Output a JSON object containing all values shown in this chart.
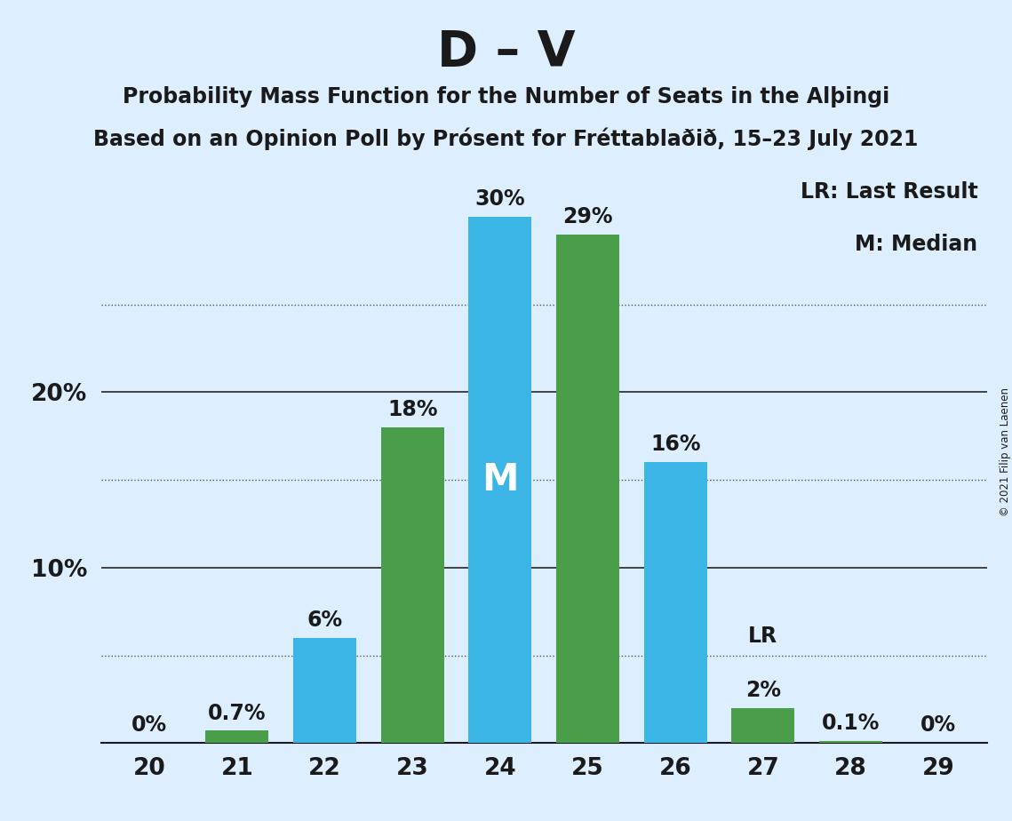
{
  "title": "D – V",
  "subtitle1": "Probability Mass Function for the Number of Seats in the Alþingi",
  "subtitle2": "Based on an Opinion Poll by Prósent for Fréttablaðið, 15–23 July 2021",
  "copyright": "© 2021 Filip van Laenen",
  "seats": [
    20,
    21,
    22,
    23,
    24,
    25,
    26,
    27,
    28,
    29
  ],
  "pmf_values": [
    0.0,
    0.7,
    6.0,
    18.0,
    30.0,
    29.0,
    16.0,
    2.0,
    0.1,
    0.0
  ],
  "bar_colors": [
    "#3ab5e6",
    "#4a9e4a",
    "#3ab5e6",
    "#4a9e4a",
    "#3ab5e6",
    "#4a9e4a",
    "#3ab5e6",
    "#4a9e4a",
    "#4a9e4a",
    "#4a9e4a"
  ],
  "median_seat": 24,
  "lr_seat": 27,
  "background_color": "#ddeeff",
  "bar_color_blue": "#3ab5e6",
  "bar_color_green": "#4a9e4a",
  "label_color": "#1a1a1a",
  "solid_grid_color": "#333333",
  "dot_grid_color": "#555555",
  "ymax": 33,
  "solid_lines": [
    10,
    20
  ],
  "dotted_lines": [
    5,
    15,
    25
  ],
  "ytick_labels": [
    10,
    20
  ],
  "legend_text1": "LR: Last Result",
  "legend_text2": "M: Median",
  "median_label": "M",
  "lr_label": "LR",
  "bar_label_fontsize": 17,
  "median_label_fontsize": 30,
  "tick_fontsize": 19,
  "title_fontsize": 40,
  "subtitle_fontsize": 17,
  "legend_fontsize": 17
}
